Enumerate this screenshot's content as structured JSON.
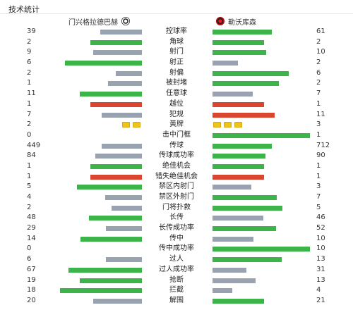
{
  "header": {
    "title": "技术统计",
    "home_team": "门兴格拉德巴赫",
    "away_team": "勒沃库森"
  },
  "colors": {
    "green": "#3cb44a",
    "gray": "#99a3b0",
    "red": "#d9452e",
    "yellow": "#f0c21c"
  },
  "stats": [
    {
      "label": "控球率",
      "home": "39",
      "away": "61",
      "home_frac": 0.43,
      "away_frac": 0.61,
      "home_color": "gray",
      "away_color": "green"
    },
    {
      "label": "角球",
      "home": "2",
      "away": "2",
      "home_frac": 0.53,
      "away_frac": 0.53,
      "home_color": "green",
      "away_color": "green"
    },
    {
      "label": "射门",
      "home": "9",
      "away": "10",
      "home_frac": 0.5,
      "away_frac": 0.55,
      "home_color": "gray",
      "away_color": "green"
    },
    {
      "label": "射正",
      "home": "6",
      "away": "2",
      "home_frac": 0.79,
      "away_frac": 0.26,
      "home_color": "green",
      "away_color": "gray"
    },
    {
      "label": "射偏",
      "home": "2",
      "away": "6",
      "home_frac": 0.27,
      "away_frac": 0.78,
      "home_color": "gray",
      "away_color": "green"
    },
    {
      "label": "被封堵",
      "home": "1",
      "away": "2",
      "home_frac": 0.35,
      "away_frac": 0.68,
      "home_color": "gray",
      "away_color": "green"
    },
    {
      "label": "任意球",
      "home": "11",
      "away": "7",
      "home_frac": 0.64,
      "away_frac": 0.41,
      "home_color": "green",
      "away_color": "gray"
    },
    {
      "label": "越位",
      "home": "1",
      "away": "1",
      "home_frac": 0.53,
      "away_frac": 0.53,
      "home_color": "red",
      "away_color": "red"
    },
    {
      "label": "犯规",
      "home": "7",
      "away": "11",
      "home_frac": 0.41,
      "away_frac": 0.64,
      "home_color": "gray",
      "away_color": "red"
    },
    {
      "label": "黄牌",
      "home": "2",
      "away": "3",
      "home_cards": 2,
      "away_cards": 3
    },
    {
      "label": "击中门框",
      "home": "0",
      "away": "1",
      "home_frac": 0,
      "away_frac": 1.0,
      "home_color": "gray",
      "away_color": "green"
    },
    {
      "label": "传球",
      "home": "449",
      "away": "712",
      "home_frac": 0.41,
      "away_frac": 0.61,
      "home_color": "gray",
      "away_color": "green"
    },
    {
      "label": "传球成功率",
      "home": "84",
      "away": "90",
      "home_frac": 0.48,
      "away_frac": 0.54,
      "home_color": "gray",
      "away_color": "green"
    },
    {
      "label": "绝佳机会",
      "home": "1",
      "away": "1",
      "home_frac": 0.53,
      "away_frac": 0.53,
      "home_color": "green",
      "away_color": "green"
    },
    {
      "label": "错失绝佳机会",
      "home": "1",
      "away": "1",
      "home_frac": 0.53,
      "away_frac": 0.53,
      "home_color": "red",
      "away_color": "red"
    },
    {
      "label": "禁区内射门",
      "home": "5",
      "away": "3",
      "home_frac": 0.67,
      "away_frac": 0.4,
      "home_color": "green",
      "away_color": "gray"
    },
    {
      "label": "禁区外射门",
      "home": "4",
      "away": "7",
      "home_frac": 0.38,
      "away_frac": 0.66,
      "home_color": "gray",
      "away_color": "green"
    },
    {
      "label": "门将扑救",
      "home": "2",
      "away": "5",
      "home_frac": 0.31,
      "away_frac": 0.72,
      "home_color": "gray",
      "away_color": "green"
    },
    {
      "label": "长传",
      "home": "48",
      "away": "46",
      "home_frac": 0.54,
      "away_frac": 0.52,
      "home_color": "green",
      "away_color": "gray"
    },
    {
      "label": "长传成功率",
      "home": "29",
      "away": "52",
      "home_frac": 0.37,
      "away_frac": 0.65,
      "home_color": "gray",
      "away_color": "green"
    },
    {
      "label": "传中",
      "home": "14",
      "away": "10",
      "home_frac": 0.63,
      "away_frac": 0.42,
      "home_color": "green",
      "away_color": "gray"
    },
    {
      "label": "传中成功率",
      "home": "0",
      "away": "10",
      "home_frac": 0,
      "away_frac": 1.0,
      "home_color": "gray",
      "away_color": "green"
    },
    {
      "label": "过人",
      "home": "6",
      "away": "13",
      "home_frac": 0.37,
      "away_frac": 0.71,
      "home_color": "gray",
      "away_color": "green"
    },
    {
      "label": "过人成功率",
      "home": "67",
      "away": "31",
      "home_frac": 0.75,
      "away_frac": 0.35,
      "home_color": "green",
      "away_color": "gray"
    },
    {
      "label": "抢断",
      "home": "19",
      "away": "13",
      "home_frac": 0.64,
      "away_frac": 0.44,
      "home_color": "green",
      "away_color": "gray"
    },
    {
      "label": "拦截",
      "home": "18",
      "away": "4",
      "home_frac": 0.84,
      "away_frac": 0.2,
      "home_color": "green",
      "away_color": "gray"
    },
    {
      "label": "解围",
      "home": "20",
      "away": "21",
      "home_frac": 0.5,
      "away_frac": 0.53,
      "home_color": "gray",
      "away_color": "green"
    }
  ]
}
